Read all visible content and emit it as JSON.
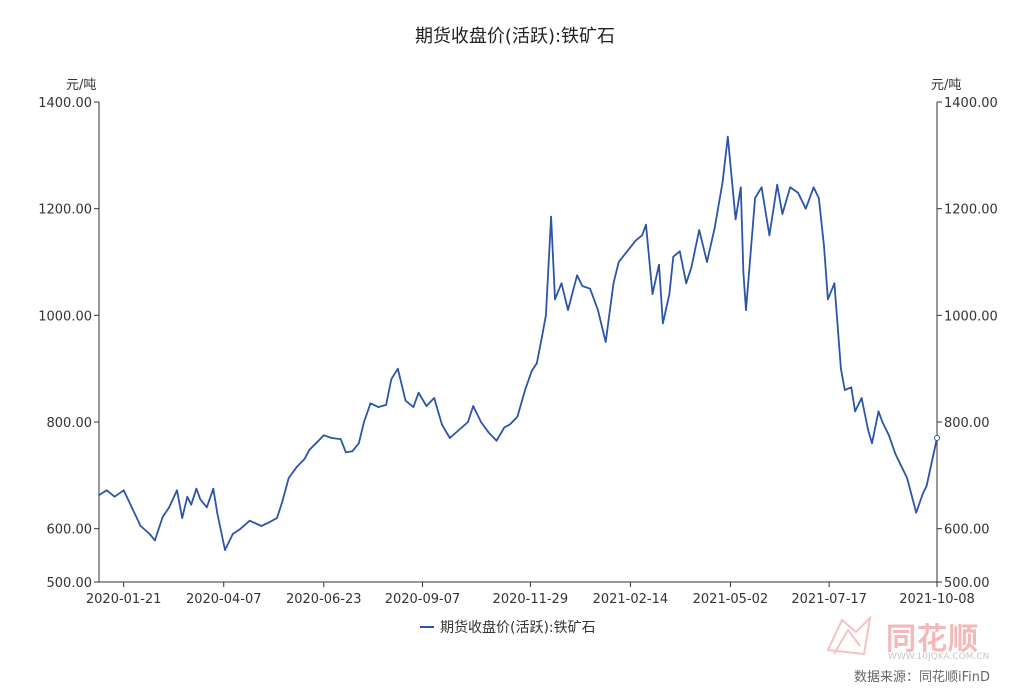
{
  "chart_data": {
    "type": "line",
    "title": "期货收盘价(活跃):铁矿石",
    "y_unit_left": "元/吨",
    "y_unit_right": "元/吨",
    "ylim": [
      500,
      1400
    ],
    "y_ticks": [
      "500.00",
      "600.00",
      "800.00",
      "1000.00",
      "1200.00",
      "1400.00"
    ],
    "x_ticks": [
      "2020-01-21",
      "2020-04-07",
      "2020-06-23",
      "2020-09-07",
      "2020-11-29",
      "2021-02-14",
      "2021-05-02",
      "2021-07-17",
      "2021-10-08"
    ],
    "xlim": [
      "2020-01-02",
      "2021-10-08"
    ],
    "legend_position": "bottom-center",
    "series": [
      {
        "name": "期货收盘价(活跃):铁矿石",
        "color": "#2c55a8",
        "x": [
          "2020-01-02",
          "2020-01-08",
          "2020-01-14",
          "2020-01-21",
          "2020-02-03",
          "2020-02-10",
          "2020-02-14",
          "2020-02-20",
          "2020-02-25",
          "2020-03-02",
          "2020-03-06",
          "2020-03-10",
          "2020-03-13",
          "2020-03-17",
          "2020-03-20",
          "2020-03-25",
          "2020-03-30",
          "2020-04-02",
          "2020-04-08",
          "2020-04-14",
          "2020-04-20",
          "2020-04-27",
          "2020-05-06",
          "2020-05-12",
          "2020-05-18",
          "2020-05-22",
          "2020-05-27",
          "2020-06-02",
          "2020-06-08",
          "2020-06-12",
          "2020-06-17",
          "2020-06-23",
          "2020-06-29",
          "2020-07-06",
          "2020-07-10",
          "2020-07-15",
          "2020-07-20",
          "2020-07-24",
          "2020-07-29",
          "2020-08-04",
          "2020-08-10",
          "2020-08-14",
          "2020-08-19",
          "2020-08-25",
          "2020-08-31",
          "2020-09-04",
          "2020-09-10",
          "2020-09-16",
          "2020-09-22",
          "2020-09-28",
          "2020-10-12",
          "2020-10-16",
          "2020-10-22",
          "2020-10-28",
          "2020-11-03",
          "2020-11-09",
          "2020-11-13",
          "2020-11-19",
          "2020-11-25",
          "2020-11-30",
          "2020-12-04",
          "2020-12-08",
          "2020-12-11",
          "2020-12-15",
          "2020-12-18",
          "2020-12-23",
          "2020-12-28",
          "2021-01-04",
          "2021-01-08",
          "2021-01-14",
          "2021-01-20",
          "2021-01-26",
          "2021-02-01",
          "2021-02-05",
          "2021-02-18",
          "2021-02-23",
          "2021-02-26",
          "2021-03-03",
          "2021-03-08",
          "2021-03-11",
          "2021-03-16",
          "2021-03-19",
          "2021-03-24",
          "2021-03-29",
          "2021-04-02",
          "2021-04-08",
          "2021-04-14",
          "2021-04-20",
          "2021-04-26",
          "2021-04-30",
          "2021-05-06",
          "2021-05-10",
          "2021-05-12",
          "2021-05-14",
          "2021-05-19",
          "2021-05-21",
          "2021-05-26",
          "2021-06-01",
          "2021-06-07",
          "2021-06-11",
          "2021-06-17",
          "2021-06-23",
          "2021-06-29",
          "2021-07-05",
          "2021-07-09",
          "2021-07-13",
          "2021-07-16",
          "2021-07-21",
          "2021-07-26",
          "2021-07-29",
          "2021-08-03",
          "2021-08-06",
          "2021-08-11",
          "2021-08-16",
          "2021-08-19",
          "2021-08-24",
          "2021-08-27",
          "2021-09-01",
          "2021-09-06",
          "2021-09-10",
          "2021-09-15",
          "2021-09-22",
          "2021-09-27",
          "2021-09-30",
          "2021-10-08"
        ],
        "values": [
          663,
          672,
          660,
          672,
          605,
          590,
          578,
          622,
          640,
          672,
          620,
          660,
          645,
          675,
          655,
          640,
          675,
          630,
          560,
          590,
          600,
          615,
          605,
          612,
          620,
          650,
          695,
          715,
          730,
          748,
          760,
          775,
          770,
          768,
          743,
          745,
          760,
          800,
          835,
          828,
          832,
          880,
          900,
          840,
          828,
          855,
          830,
          845,
          795,
          770,
          800,
          830,
          800,
          780,
          765,
          790,
          795,
          810,
          860,
          895,
          910,
          960,
          1000,
          1185,
          1030,
          1060,
          1010,
          1075,
          1055,
          1050,
          1010,
          950,
          1060,
          1100,
          1140,
          1150,
          1170,
          1040,
          1095,
          985,
          1040,
          1110,
          1120,
          1060,
          1090,
          1160,
          1100,
          1165,
          1250,
          1335,
          1180,
          1240,
          1080,
          1010,
          1160,
          1220,
          1240,
          1150,
          1245,
          1190,
          1240,
          1230,
          1200,
          1240,
          1220,
          1130,
          1030,
          1060,
          900,
          860,
          865,
          820,
          845,
          785,
          760,
          820,
          800,
          775,
          740,
          720,
          695,
          630,
          665,
          680,
          770
        ]
      }
    ]
  },
  "watermark": {
    "brand": "同花顺",
    "url": "WWW.10JQKA.COM.CN",
    "source": "数据来源：同花顺iFinD"
  }
}
